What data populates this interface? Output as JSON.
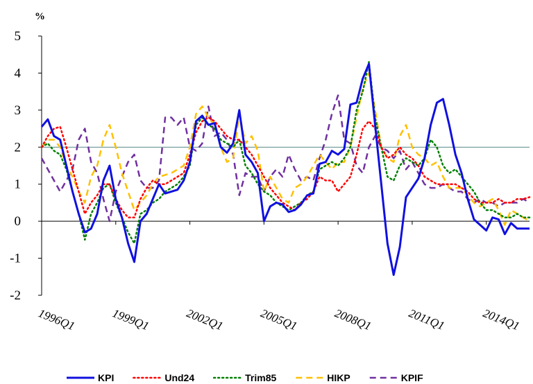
{
  "chart_data": {
    "type": "line",
    "y_label": "%",
    "categories": [
      "1996Q1",
      null,
      null,
      null,
      null,
      null,
      null,
      null,
      null,
      null,
      null,
      null,
      "1999Q1",
      null,
      null,
      null,
      null,
      null,
      null,
      null,
      null,
      null,
      null,
      null,
      "2002Q1",
      null,
      null,
      null,
      null,
      null,
      null,
      null,
      null,
      null,
      null,
      null,
      "2005Q1",
      null,
      null,
      null,
      null,
      null,
      null,
      null,
      null,
      null,
      null,
      null,
      "2008Q1",
      null,
      null,
      null,
      null,
      null,
      null,
      null,
      null,
      null,
      null,
      null,
      "2011Q1",
      null,
      null,
      null,
      null,
      null,
      null,
      null,
      null,
      null,
      null,
      null,
      "2014Q1",
      null,
      null,
      null,
      null,
      null,
      null,
      null
    ],
    "ylim": [
      -2,
      5
    ],
    "yticks": [
      -2,
      -1,
      0,
      1,
      2,
      3,
      4,
      5
    ],
    "reference_line": 2,
    "series": [
      {
        "name": "KPI",
        "color": "#1010e0",
        "dash": "solid",
        "values": [
          2.55,
          2.75,
          2.3,
          2.2,
          1.5,
          0.8,
          0.2,
          -0.3,
          -0.2,
          0.2,
          1.1,
          1.5,
          0.6,
          0.1,
          -0.6,
          -1.1,
          0.0,
          0.2,
          0.6,
          1.0,
          0.75,
          0.8,
          0.85,
          1.1,
          1.6,
          2.7,
          2.85,
          2.6,
          2.65,
          2.0,
          1.85,
          2.1,
          3.0,
          1.8,
          1.6,
          1.3,
          0.0,
          0.4,
          0.5,
          0.45,
          0.25,
          0.3,
          0.45,
          0.7,
          0.75,
          1.55,
          1.6,
          1.9,
          1.8,
          1.95,
          3.15,
          3.2,
          3.85,
          4.25,
          2.6,
          1.0,
          -0.6,
          -1.45,
          -0.7,
          0.65,
          0.9,
          1.15,
          1.7,
          2.6,
          3.2,
          3.3,
          2.6,
          1.8,
          1.3,
          0.6,
          0.05,
          -0.1,
          -0.25,
          0.1,
          0.05,
          -0.35,
          -0.05,
          -0.2,
          -0.2,
          -0.2
        ]
      },
      {
        "name": "Und24",
        "color": "#ff0000",
        "dash": "dotted",
        "values": [
          2.0,
          2.3,
          2.5,
          2.55,
          2.0,
          1.4,
          0.8,
          0.2,
          0.5,
          0.7,
          1.0,
          1.0,
          0.6,
          0.3,
          0.1,
          0.1,
          0.6,
          0.9,
          1.1,
          1.0,
          1.0,
          1.1,
          1.2,
          1.3,
          1.8,
          2.4,
          2.7,
          2.8,
          2.7,
          2.5,
          2.3,
          2.2,
          2.2,
          2.0,
          1.8,
          1.5,
          1.2,
          0.9,
          0.7,
          0.5,
          0.4,
          0.3,
          0.5,
          0.6,
          0.8,
          1.2,
          1.1,
          1.1,
          0.8,
          1.0,
          1.2,
          1.8,
          2.5,
          2.7,
          2.5,
          2.0,
          1.7,
          1.8,
          2.0,
          1.8,
          1.7,
          1.5,
          1.2,
          1.1,
          1.0,
          1.0,
          1.0,
          1.0,
          0.9,
          0.8,
          0.6,
          0.5,
          0.5,
          0.5,
          0.6,
          0.5,
          0.5,
          0.6,
          0.6,
          0.65
        ]
      },
      {
        "name": "Trim85",
        "color": "#008000",
        "dash": "dotted",
        "values": [
          2.0,
          2.1,
          1.9,
          1.8,
          1.4,
          0.8,
          0.2,
          -0.5,
          0.2,
          0.5,
          0.9,
          1.0,
          0.5,
          0.1,
          -0.3,
          -0.6,
          0.2,
          0.3,
          0.5,
          0.6,
          0.8,
          0.9,
          1.0,
          1.2,
          1.5,
          2.6,
          2.8,
          2.6,
          2.5,
          2.2,
          2.1,
          2.0,
          2.2,
          1.5,
          1.3,
          1.0,
          0.8,
          0.7,
          0.5,
          0.4,
          0.3,
          0.4,
          0.5,
          0.7,
          0.8,
          1.4,
          1.5,
          1.6,
          1.5,
          1.7,
          2.0,
          3.0,
          3.5,
          4.3,
          2.8,
          2.0,
          1.2,
          1.1,
          1.5,
          1.7,
          1.6,
          1.5,
          1.7,
          2.2,
          2.0,
          1.5,
          1.3,
          1.4,
          1.2,
          1.0,
          0.8,
          0.5,
          0.3,
          0.3,
          0.2,
          0.1,
          0.1,
          0.2,
          0.1,
          0.1
        ]
      },
      {
        "name": "HIKP",
        "color": "#ffc000",
        "dash": "dashed",
        "values": [
          2.0,
          2.2,
          2.2,
          2.0,
          1.5,
          1.2,
          0.8,
          0.5,
          1.2,
          1.5,
          2.2,
          2.6,
          2.0,
          1.3,
          0.8,
          0.3,
          0.5,
          0.7,
          1.0,
          1.2,
          1.25,
          1.3,
          1.4,
          1.5,
          2.0,
          2.9,
          3.1,
          2.8,
          2.6,
          2.0,
          1.6,
          1.7,
          2.9,
          2.1,
          2.3,
          1.9,
          0.8,
          1.2,
          0.9,
          0.6,
          0.5,
          0.9,
          1.0,
          1.2,
          1.5,
          1.8,
          1.6,
          1.4,
          1.6,
          1.6,
          2.0,
          2.8,
          3.6,
          4.0,
          3.0,
          2.0,
          1.7,
          1.6,
          2.3,
          2.6,
          2.0,
          1.8,
          1.7,
          1.5,
          1.6,
          1.2,
          0.9,
          0.9,
          0.9,
          0.7,
          0.5,
          0.4,
          0.5,
          0.6,
          0.3,
          -0.1,
          0.3,
          0.2,
          0.1,
          0.0
        ]
      },
      {
        "name": "KPIF",
        "color": "#7030a0",
        "dash": "dashed",
        "values": [
          1.7,
          1.4,
          1.1,
          0.8,
          1.1,
          1.4,
          2.2,
          2.5,
          1.6,
          1.3,
          0.6,
          0.0,
          0.8,
          1.2,
          1.6,
          1.8,
          1.1,
          0.9,
          0.9,
          1.1,
          2.8,
          2.8,
          2.6,
          2.8,
          2.0,
          1.9,
          2.1,
          3.1,
          2.3,
          2.4,
          2.2,
          1.8,
          0.7,
          1.3,
          1.2,
          1.2,
          0.8,
          1.2,
          1.4,
          1.2,
          1.8,
          1.4,
          1.1,
          1.2,
          1.1,
          1.7,
          2.2,
          2.9,
          3.4,
          2.2,
          2.1,
          1.5,
          1.3,
          2.0,
          2.3,
          2.0,
          1.9,
          1.7,
          1.9,
          1.4,
          1.6,
          1.3,
          1.0,
          0.9,
          0.9,
          1.0,
          0.9,
          0.8,
          0.8,
          0.6,
          0.5,
          0.6,
          0.5,
          0.5,
          0.4,
          0.5,
          0.5,
          0.5,
          0.6,
          0.5
        ]
      }
    ]
  }
}
